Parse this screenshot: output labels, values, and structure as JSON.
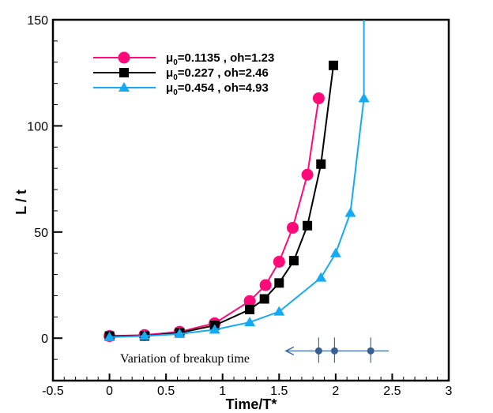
{
  "chart_data": {
    "type": "line",
    "xlabel": "Time/T*",
    "ylabel": "L / t",
    "xlim": [
      -0.5,
      3
    ],
    "ylim": [
      -20,
      150
    ],
    "xticks": [
      "-0.5",
      "0",
      "0.5",
      "1",
      "1.5",
      "2",
      "2.5",
      "3"
    ],
    "yticks": [
      "0",
      "50",
      "100",
      "150"
    ],
    "grid": false,
    "legend_position": "top-left",
    "series": [
      {
        "name_main": "μ",
        "name_sub": "0",
        "name_rest": "=0.1135 , oh=1.23",
        "color": "#ff0a78",
        "marker": "circle",
        "x": [
          0,
          0.31,
          0.62,
          0.93,
          1.24,
          1.38,
          1.5,
          1.62,
          1.75,
          1.85
        ],
        "y": [
          1,
          1.5,
          3,
          7,
          17.5,
          25,
          36,
          52,
          77,
          113
        ]
      },
      {
        "name_main": "μ",
        "name_sub": "0",
        "name_rest": "=0.227 , oh=2.46",
        "color": "#000000",
        "marker": "square",
        "x": [
          0,
          0.31,
          0.62,
          0.93,
          1.24,
          1.37,
          1.5,
          1.63,
          1.75,
          1.87,
          1.98
        ],
        "y": [
          1,
          1,
          2.5,
          6,
          13.5,
          18.5,
          26,
          36.5,
          53,
          82,
          128.5
        ]
      },
      {
        "name_main": "μ",
        "name_sub": "0",
        "name_rest": "=0.454 , oh=4.93",
        "color": "#14aaf5",
        "marker": "triangle",
        "x": [
          0,
          0.31,
          0.62,
          0.93,
          1.24,
          1.5,
          1.87,
          2.0,
          2.13,
          2.25,
          2.25
        ],
        "y": [
          0.5,
          1,
          2,
          4,
          7.5,
          12.5,
          28.5,
          40,
          59,
          113,
          150
        ]
      }
    ],
    "annotation": {
      "text": "Variation of breakup time",
      "color": "#3c6aa8",
      "breakup_x": [
        1.85,
        1.99,
        2.31
      ],
      "y": -6,
      "arrow_from_x": 2.47,
      "arrow_to_x": 1.56
    }
  }
}
